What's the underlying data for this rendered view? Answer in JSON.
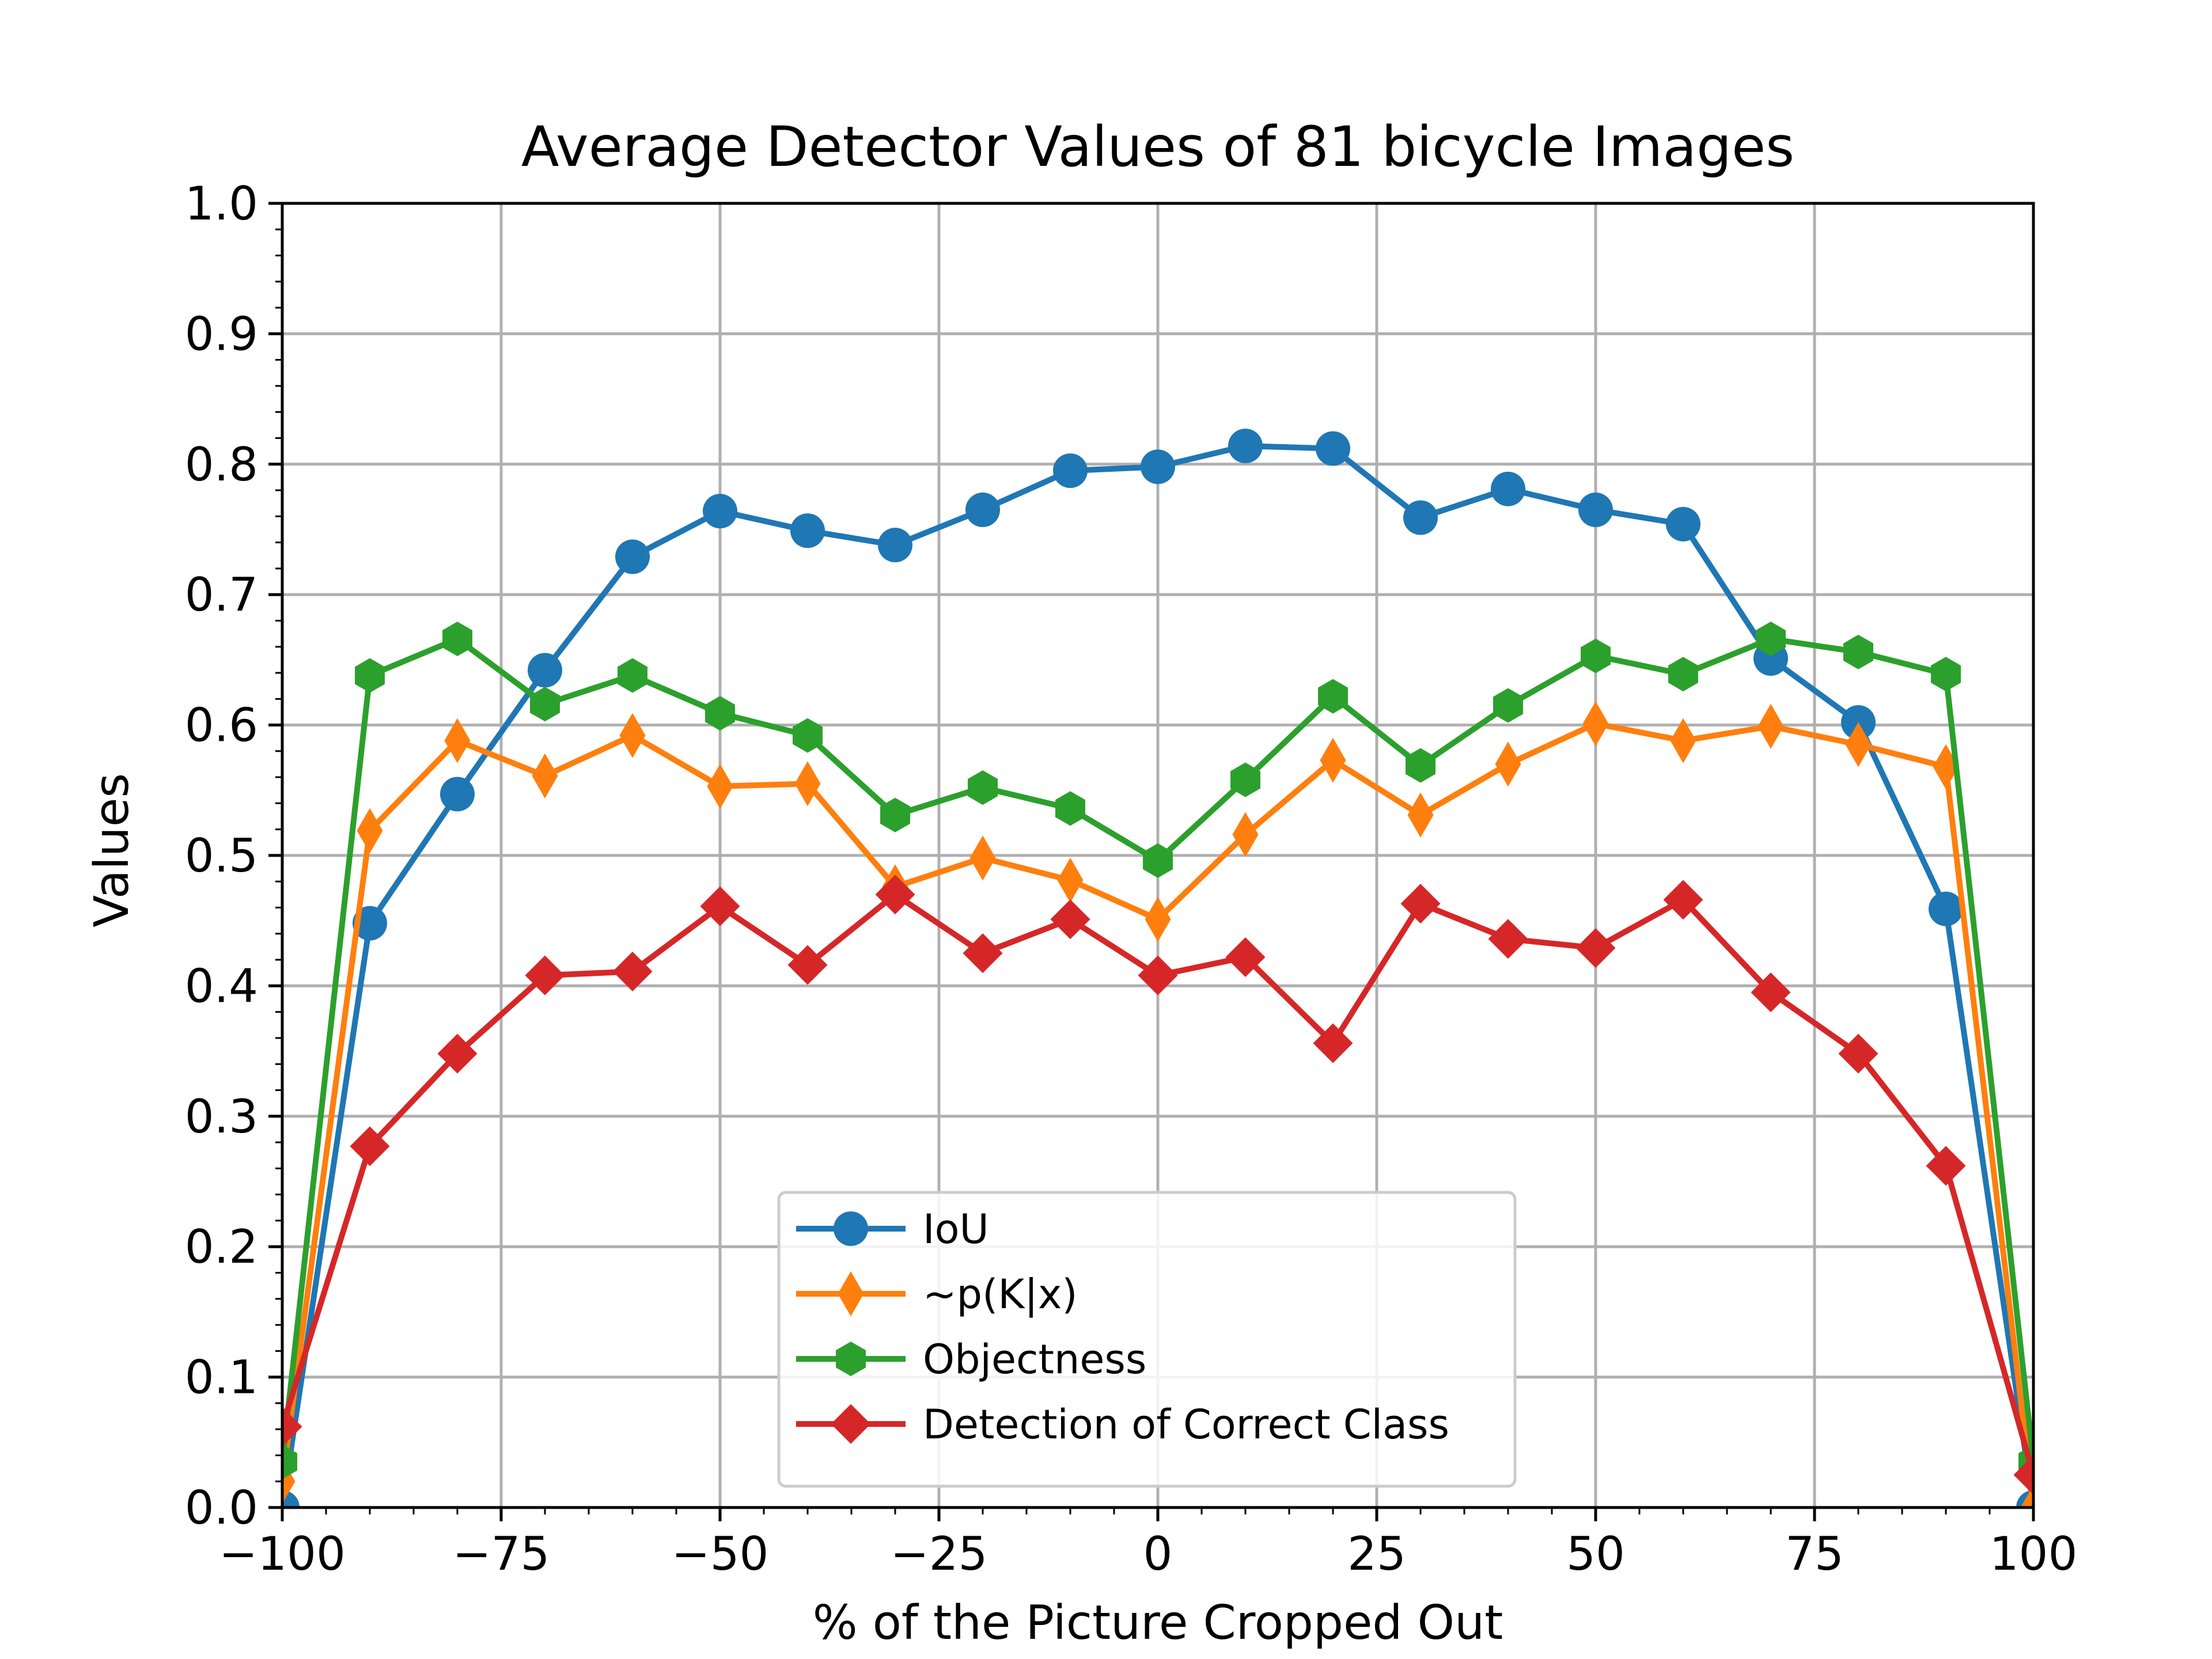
{
  "chart_data": {
    "type": "line",
    "title": "Average Detector Values of 81 bicycle Images",
    "xlabel": "% of the Picture Cropped Out",
    "ylabel": "Values",
    "xlim": [
      -100,
      100
    ],
    "ylim": [
      0.0,
      1.0
    ],
    "grid": true,
    "legend_position": "lower center",
    "x": [
      -100,
      -90,
      -80,
      -70,
      -60,
      -50,
      -40,
      -30,
      -20,
      -10,
      0,
      10,
      20,
      30,
      40,
      50,
      60,
      70,
      80,
      90,
      100
    ],
    "x_ticks": [
      {
        "value": -100,
        "label": "−100"
      },
      {
        "value": -75,
        "label": "−75"
      },
      {
        "value": -50,
        "label": "−50"
      },
      {
        "value": -25,
        "label": "−25"
      },
      {
        "value": 0,
        "label": "0"
      },
      {
        "value": 25,
        "label": "25"
      },
      {
        "value": 50,
        "label": "50"
      },
      {
        "value": 75,
        "label": "75"
      },
      {
        "value": 100,
        "label": "100"
      }
    ],
    "y_ticks": [
      {
        "value": 0.0,
        "label": "0.0"
      },
      {
        "value": 0.1,
        "label": "0.1"
      },
      {
        "value": 0.2,
        "label": "0.2"
      },
      {
        "value": 0.3,
        "label": "0.3"
      },
      {
        "value": 0.4,
        "label": "0.4"
      },
      {
        "value": 0.5,
        "label": "0.5"
      },
      {
        "value": 0.6,
        "label": "0.6"
      },
      {
        "value": 0.7,
        "label": "0.7"
      },
      {
        "value": 0.8,
        "label": "0.8"
      },
      {
        "value": 0.9,
        "label": "0.9"
      },
      {
        "value": 1.0,
        "label": "1.0"
      }
    ],
    "series": [
      {
        "name": "IoU",
        "color": "#1f77b4",
        "marker": "circle",
        "values": [
          0.0,
          0.448,
          0.547,
          0.642,
          0.729,
          0.764,
          0.749,
          0.738,
          0.765,
          0.795,
          0.798,
          0.814,
          0.812,
          0.759,
          0.781,
          0.765,
          0.754,
          0.651,
          0.602,
          0.459,
          0.0
        ]
      },
      {
        "name": "~p(K|x)",
        "color": "#ff7f0e",
        "marker": "thin_diamond",
        "values": [
          0.02,
          0.519,
          0.588,
          0.561,
          0.592,
          0.553,
          0.555,
          0.476,
          0.498,
          0.481,
          0.451,
          0.516,
          0.573,
          0.531,
          0.57,
          0.601,
          0.588,
          0.599,
          0.585,
          0.568,
          0.0
        ]
      },
      {
        "name": "Objectness",
        "color": "#2ca02c",
        "marker": "hexagon",
        "values": [
          0.035,
          0.638,
          0.666,
          0.616,
          0.638,
          0.609,
          0.592,
          0.531,
          0.552,
          0.536,
          0.496,
          0.558,
          0.622,
          0.569,
          0.615,
          0.653,
          0.639,
          0.666,
          0.656,
          0.639,
          0.035
        ]
      },
      {
        "name": "Detection of Correct Class",
        "color": "#d62728",
        "marker": "diamond",
        "values": [
          0.062,
          0.277,
          0.348,
          0.408,
          0.411,
          0.461,
          0.416,
          0.47,
          0.425,
          0.451,
          0.408,
          0.422,
          0.356,
          0.463,
          0.436,
          0.429,
          0.466,
          0.395,
          0.348,
          0.262,
          0.025
        ]
      }
    ]
  }
}
